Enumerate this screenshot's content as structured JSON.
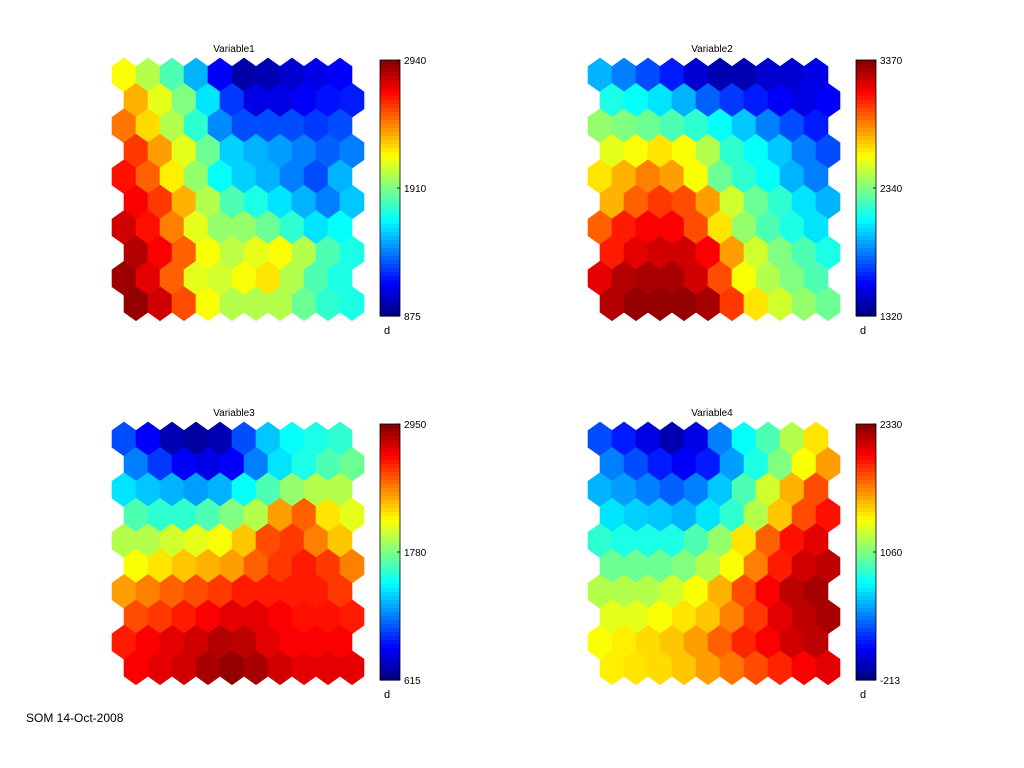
{
  "footer": {
    "text": "SOM 14-Oct-2008"
  },
  "chart_data": [
    {
      "type": "heatmap",
      "title": "Variable1",
      "grid": {
        "rows": 10,
        "cols": 10,
        "cell_shape": "hexagon"
      },
      "colormap": "jet",
      "colorbar": {
        "min": 875,
        "mid": 1910,
        "max": 2940,
        "ticks": [
          "2940",
          "1910",
          "875"
        ],
        "unit_label": "d"
      },
      "values": [
        [
          0.62,
          0.55,
          0.45,
          0.3,
          0.12,
          0.04,
          0.05,
          0.08,
          0.1,
          0.12
        ],
        [
          0.7,
          0.6,
          0.5,
          0.35,
          0.18,
          0.1,
          0.1,
          0.12,
          0.14,
          0.15
        ],
        [
          0.76,
          0.66,
          0.55,
          0.42,
          0.26,
          0.2,
          0.2,
          0.2,
          0.18,
          0.2
        ],
        [
          0.82,
          0.72,
          0.6,
          0.48,
          0.33,
          0.3,
          0.28,
          0.25,
          0.22,
          0.25
        ],
        [
          0.86,
          0.78,
          0.64,
          0.52,
          0.38,
          0.33,
          0.3,
          0.25,
          0.2,
          0.3
        ],
        [
          0.88,
          0.82,
          0.7,
          0.55,
          0.45,
          0.4,
          0.35,
          0.3,
          0.25,
          0.32
        ],
        [
          0.92,
          0.86,
          0.75,
          0.6,
          0.52,
          0.52,
          0.48,
          0.42,
          0.35,
          0.38
        ],
        [
          0.95,
          0.88,
          0.78,
          0.62,
          0.56,
          0.6,
          0.62,
          0.55,
          0.45,
          0.4
        ],
        [
          0.97,
          0.9,
          0.78,
          0.6,
          0.58,
          0.62,
          0.65,
          0.55,
          0.45,
          0.4
        ],
        [
          0.98,
          0.92,
          0.8,
          0.62,
          0.55,
          0.55,
          0.55,
          0.48,
          0.42,
          0.4
        ]
      ]
    },
    {
      "type": "heatmap",
      "title": "Variable2",
      "grid": {
        "rows": 10,
        "cols": 10,
        "cell_shape": "hexagon"
      },
      "colormap": "jet",
      "colorbar": {
        "min": 1320,
        "mid": 2340,
        "max": 3370,
        "ticks": [
          "3370",
          "2340",
          "1320"
        ],
        "unit_label": "d"
      },
      "values": [
        [
          0.3,
          0.25,
          0.2,
          0.15,
          0.08,
          0.05,
          0.05,
          0.08,
          0.08,
          0.1
        ],
        [
          0.4,
          0.38,
          0.35,
          0.3,
          0.22,
          0.18,
          0.15,
          0.12,
          0.1,
          0.12
        ],
        [
          0.52,
          0.5,
          0.48,
          0.45,
          0.42,
          0.38,
          0.32,
          0.25,
          0.2,
          0.15
        ],
        [
          0.6,
          0.62,
          0.65,
          0.62,
          0.55,
          0.42,
          0.38,
          0.32,
          0.25,
          0.2
        ],
        [
          0.65,
          0.7,
          0.75,
          0.72,
          0.62,
          0.48,
          0.42,
          0.38,
          0.3,
          0.25
        ],
        [
          0.7,
          0.78,
          0.82,
          0.8,
          0.72,
          0.58,
          0.48,
          0.42,
          0.35,
          0.3
        ],
        [
          0.78,
          0.85,
          0.88,
          0.88,
          0.8,
          0.65,
          0.52,
          0.45,
          0.4,
          0.35
        ],
        [
          0.85,
          0.9,
          0.92,
          0.92,
          0.88,
          0.72,
          0.58,
          0.5,
          0.45,
          0.4
        ],
        [
          0.9,
          0.95,
          0.96,
          0.96,
          0.92,
          0.8,
          0.62,
          0.55,
          0.5,
          0.45
        ],
        [
          0.95,
          0.98,
          0.98,
          0.98,
          0.96,
          0.82,
          0.65,
          0.58,
          0.52,
          0.48
        ]
      ]
    },
    {
      "type": "heatmap",
      "title": "Variable3",
      "grid": {
        "rows": 10,
        "cols": 10,
        "cell_shape": "hexagon"
      },
      "colormap": "jet",
      "colorbar": {
        "min": 615,
        "mid": 1780,
        "max": 2950,
        "ticks": [
          "2950",
          "1780",
          "615"
        ],
        "unit_label": "d"
      },
      "values": [
        [
          0.2,
          0.12,
          0.05,
          0.03,
          0.05,
          0.2,
          0.32,
          0.38,
          0.4,
          0.42
        ],
        [
          0.25,
          0.18,
          0.12,
          0.1,
          0.12,
          0.25,
          0.35,
          0.4,
          0.45,
          0.48
        ],
        [
          0.35,
          0.32,
          0.3,
          0.28,
          0.3,
          0.38,
          0.45,
          0.52,
          0.55,
          0.55
        ],
        [
          0.45,
          0.42,
          0.42,
          0.45,
          0.5,
          0.55,
          0.72,
          0.78,
          0.65,
          0.6
        ],
        [
          0.55,
          0.55,
          0.58,
          0.6,
          0.62,
          0.68,
          0.8,
          0.82,
          0.75,
          0.68
        ],
        [
          0.62,
          0.65,
          0.68,
          0.7,
          0.72,
          0.78,
          0.82,
          0.85,
          0.82,
          0.75
        ],
        [
          0.72,
          0.75,
          0.78,
          0.8,
          0.82,
          0.85,
          0.85,
          0.85,
          0.85,
          0.82
        ],
        [
          0.8,
          0.82,
          0.85,
          0.88,
          0.9,
          0.9,
          0.88,
          0.86,
          0.86,
          0.85
        ],
        [
          0.85,
          0.88,
          0.9,
          0.92,
          0.95,
          0.94,
          0.9,
          0.88,
          0.88,
          0.88
        ],
        [
          0.88,
          0.9,
          0.92,
          0.96,
          0.98,
          0.96,
          0.92,
          0.9,
          0.9,
          0.9
        ]
      ]
    },
    {
      "type": "heatmap",
      "title": "Variable4",
      "grid": {
        "rows": 10,
        "cols": 10,
        "cell_shape": "hexagon"
      },
      "colormap": "jet",
      "colorbar": {
        "min": -213,
        "mid": 1060,
        "max": 2330,
        "ticks": [
          "2330",
          "1060",
          "-213"
        ],
        "unit_label": "d"
      },
      "values": [
        [
          0.2,
          0.15,
          0.1,
          0.05,
          0.1,
          0.25,
          0.38,
          0.45,
          0.55,
          0.65
        ],
        [
          0.25,
          0.2,
          0.15,
          0.12,
          0.15,
          0.28,
          0.4,
          0.5,
          0.62,
          0.72
        ],
        [
          0.3,
          0.28,
          0.25,
          0.22,
          0.25,
          0.32,
          0.45,
          0.58,
          0.7,
          0.8
        ],
        [
          0.35,
          0.33,
          0.32,
          0.3,
          0.35,
          0.42,
          0.55,
          0.68,
          0.8,
          0.86
        ],
        [
          0.42,
          0.4,
          0.4,
          0.4,
          0.45,
          0.52,
          0.65,
          0.78,
          0.86,
          0.9
        ],
        [
          0.48,
          0.48,
          0.48,
          0.5,
          0.55,
          0.62,
          0.75,
          0.85,
          0.92,
          0.94
        ],
        [
          0.55,
          0.55,
          0.55,
          0.58,
          0.62,
          0.7,
          0.8,
          0.88,
          0.94,
          0.96
        ],
        [
          0.6,
          0.6,
          0.62,
          0.65,
          0.68,
          0.75,
          0.82,
          0.9,
          0.94,
          0.96
        ],
        [
          0.62,
          0.64,
          0.66,
          0.68,
          0.72,
          0.78,
          0.84,
          0.88,
          0.92,
          0.94
        ],
        [
          0.64,
          0.65,
          0.66,
          0.68,
          0.72,
          0.76,
          0.8,
          0.84,
          0.88,
          0.9
        ]
      ]
    }
  ]
}
